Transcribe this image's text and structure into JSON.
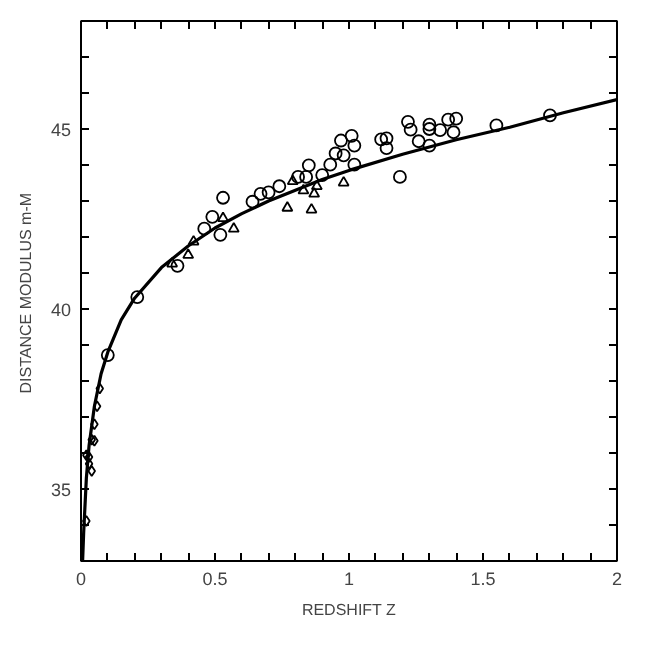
{
  "chart_data": {
    "type": "scatter",
    "xlabel": "REDSHIFT Z",
    "ylabel": "DISTANCE MODULUS  m-M",
    "xlim": [
      0,
      2
    ],
    "ylim": [
      33,
      48
    ],
    "xticks": [
      0,
      {
        "value": 0.1,
        "label": null
      },
      {
        "value": 0.2,
        "label": null
      },
      {
        "value": 0.3,
        "label": null
      },
      {
        "value": 0.4,
        "label": null
      },
      0.5,
      {
        "value": 0.6,
        "label": null
      },
      {
        "value": 0.7,
        "label": null
      },
      {
        "value": 0.8,
        "label": null
      },
      {
        "value": 0.9,
        "label": null
      },
      1,
      {
        "value": 1.1,
        "label": null
      },
      {
        "value": 1.2,
        "label": null
      },
      {
        "value": 1.3,
        "label": null
      },
      {
        "value": 1.4,
        "label": null
      },
      1.5,
      {
        "value": 1.6,
        "label": null
      },
      {
        "value": 1.7,
        "label": null
      },
      {
        "value": 1.8,
        "label": null
      },
      {
        "value": 1.9,
        "label": null
      },
      2
    ],
    "yticks": [
      {
        "value": 34,
        "label": null
      },
      35,
      {
        "value": 36,
        "label": null
      },
      {
        "value": 37,
        "label": null
      },
      {
        "value": 38,
        "label": null
      },
      {
        "value": 39,
        "label": null
      },
      40,
      {
        "value": 41,
        "label": null
      },
      {
        "value": 42,
        "label": null
      },
      {
        "value": 43,
        "label": null
      },
      {
        "value": 44,
        "label": null
      },
      45,
      {
        "value": 46,
        "label": null
      },
      {
        "value": 47,
        "label": null
      }
    ],
    "grid": false,
    "series": [
      {
        "type": "line",
        "color": "#000000",
        "marker": "none",
        "line_style": "solid",
        "x": [
          0.006,
          0.01,
          0.02,
          0.03,
          0.05,
          0.075,
          0.1,
          0.15,
          0.2,
          0.3,
          0.4,
          0.5,
          0.6,
          0.7,
          0.8,
          0.9,
          1.0,
          1.2,
          1.4,
          1.6,
          1.8,
          2.0
        ],
        "values": [
          33.0,
          33.8,
          35.3,
          36.2,
          37.3,
          38.2,
          38.8,
          39.7,
          40.3,
          41.15,
          41.75,
          42.25,
          42.65,
          43.0,
          43.3,
          43.6,
          43.85,
          44.3,
          44.7,
          45.05,
          45.45,
          45.82
        ]
      },
      {
        "color": "#000000",
        "marker": "circle",
        "x": [
          0.21,
          0.1,
          0.36,
          0.46,
          0.49,
          0.53,
          0.52,
          0.64,
          0.67,
          0.7,
          0.74,
          0.81,
          0.85,
          0.84,
          0.9,
          0.93,
          0.95,
          0.97,
          0.98,
          1.01,
          1.02,
          1.02,
          1.12,
          1.14,
          1.14,
          1.19,
          1.22,
          1.23,
          1.26,
          1.3,
          1.3,
          1.3,
          1.34,
          1.37,
          1.4,
          1.39,
          1.55,
          1.75
        ],
        "values": [
          40.33,
          38.72,
          41.2,
          42.23,
          42.56,
          43.09,
          42.06,
          42.98,
          43.2,
          43.24,
          43.41,
          43.67,
          43.99,
          43.67,
          43.72,
          44.01,
          44.32,
          44.68,
          44.27,
          44.81,
          44.54,
          44.01,
          44.71,
          44.74,
          44.47,
          43.67,
          45.2,
          44.98,
          44.66,
          45.12,
          45.0,
          44.54,
          44.97,
          45.26,
          45.29,
          44.91,
          45.1,
          45.38
        ]
      },
      {
        "color": "#000000",
        "marker": "diamond",
        "x": [
          0.02,
          0.02,
          0.03,
          0.03,
          0.04,
          0.04,
          0.05,
          0.05,
          0.06,
          0.07
        ],
        "values": [
          34.11,
          35.94,
          35.89,
          35.7,
          35.5,
          36.37,
          36.34,
          36.8,
          37.3,
          37.79
        ]
      },
      {
        "color": "#000000",
        "marker": "triangle",
        "x": [
          0.34,
          0.4,
          0.42,
          0.53,
          0.57,
          0.77,
          0.79,
          0.83,
          0.86,
          0.87,
          0.88,
          0.98
        ],
        "values": [
          41.26,
          41.5,
          41.87,
          42.52,
          42.23,
          42.81,
          43.55,
          43.29,
          42.76,
          43.2,
          43.41,
          43.51
        ]
      }
    ]
  }
}
